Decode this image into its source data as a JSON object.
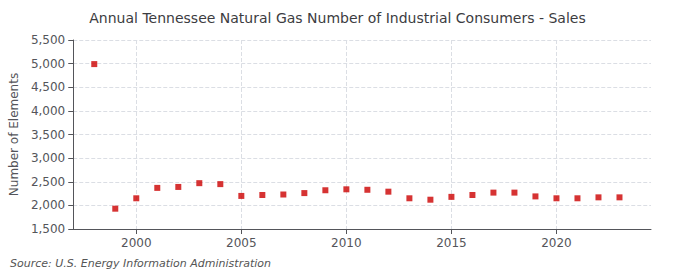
{
  "chart_data": {
    "type": "scatter",
    "title": "Annual Tennessee Natural Gas Number of Industrial Consumers - Sales",
    "ylabel": "Number of Elements",
    "annotation": "Source: U.S. Energy Information Administration",
    "x": [
      1998,
      1999,
      2000,
      2001,
      2002,
      2003,
      2004,
      2005,
      2006,
      2007,
      2008,
      2009,
      2010,
      2011,
      2012,
      2013,
      2014,
      2015,
      2016,
      2017,
      2018,
      2019,
      2020,
      2021,
      2022,
      2023
    ],
    "values": [
      4990,
      1930,
      2150,
      2370,
      2390,
      2470,
      2450,
      2200,
      2220,
      2230,
      2260,
      2320,
      2340,
      2330,
      2290,
      2150,
      2120,
      2180,
      2220,
      2270,
      2270,
      2190,
      2150,
      2150,
      2170,
      2170
    ],
    "color": "#cc0000",
    "marker": "square",
    "xlim": [
      1997.0,
      2024.5
    ],
    "xticks": [
      2000,
      2005,
      2010,
      2015,
      2020
    ],
    "ylim": [
      1500,
      5500
    ],
    "yticks": [
      {
        "value": 1500,
        "label": "1,500"
      },
      {
        "value": 2000,
        "label": "2,000"
      },
      {
        "value": 2500,
        "label": "2,500"
      },
      {
        "value": 3000,
        "label": "3,000"
      },
      {
        "value": 3500,
        "label": "3,500"
      },
      {
        "value": 4000,
        "label": "4,000"
      },
      {
        "value": 4500,
        "label": "4,500"
      },
      {
        "value": 5000,
        "label": "5,000"
      },
      {
        "value": 5500,
        "label": "5,500"
      }
    ],
    "grid": true
  }
}
